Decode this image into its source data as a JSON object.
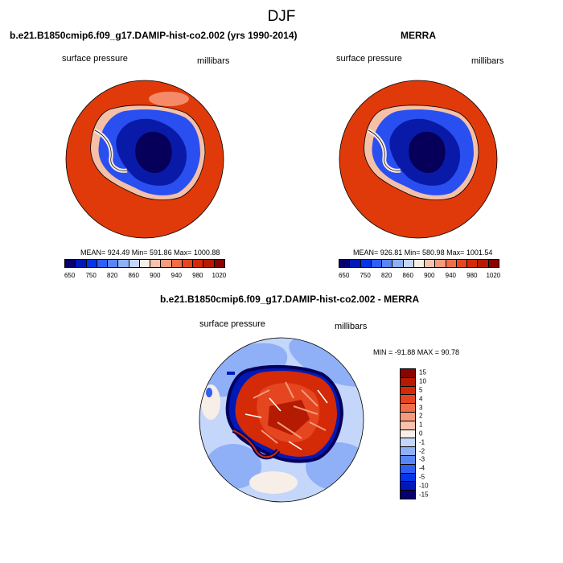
{
  "title": "DJF",
  "panels": [
    {
      "title": "b.e21.B1850cmip6.f09_g17.DAMIP-hist-co2.002 (yrs 1990-2014)",
      "left_label": "surface pressure",
      "right_label": "millibars",
      "stats": "MEAN= 924.49  Min= 591.86  Max= 1000.88"
    },
    {
      "title": "MERRA",
      "left_label": "surface pressure",
      "right_label": "millibars",
      "stats": "MEAN= 926.81  Min= 580.98  Max= 1001.54"
    },
    {
      "title": "b.e21.B1850cmip6.f09_g17.DAMIP-hist-co2.002 - MERRA",
      "left_label": "surface pressure",
      "right_label": "millibars",
      "stats": "MIN = -91.88  MAX =  90.78"
    }
  ],
  "colorbar_top": {
    "labels": [
      "650",
      "750",
      "820",
      "860",
      "900",
      "940",
      "980",
      "1020"
    ],
    "colors": [
      "#08006e",
      "#0019b6",
      "#0535e6",
      "#2f5ff0",
      "#5a86f5",
      "#8fb0f7",
      "#c4d6fa",
      "#f8eee8",
      "#f8c2ac",
      "#f49b7e",
      "#ee6e4a",
      "#e5461f",
      "#d42a08",
      "#b51a02",
      "#890400"
    ]
  },
  "colorbar_diff": {
    "labels": [
      "15",
      "10",
      "5",
      "4",
      "3",
      "2",
      "1",
      "0",
      "-1",
      "-2",
      "-3",
      "-4",
      "-5",
      "-10",
      "-15"
    ],
    "colors": [
      "#890400",
      "#b51a02",
      "#d42a08",
      "#e5461f",
      "#ee6e4a",
      "#f49b7e",
      "#f8c2ac",
      "#f8eee8",
      "#c4d6fa",
      "#8fb0f7",
      "#5a86f5",
      "#2f5ff0",
      "#0535e6",
      "#0019b6",
      "#08006e"
    ]
  },
  "chart_data": [
    {
      "type": "heatmap",
      "title": "b.e21.B1850cmip6.f09_g17.DAMIP-hist-co2.002 (yrs 1990-2014)",
      "variable": "surface pressure",
      "units": "millibars",
      "projection": "south polar stereographic",
      "mean": 924.49,
      "min": 591.86,
      "max": 1000.88,
      "contour_levels": [
        650,
        700,
        750,
        800,
        820,
        840,
        860,
        880,
        900,
        920,
        940,
        960,
        980,
        1000,
        1020
      ]
    },
    {
      "type": "heatmap",
      "title": "MERRA",
      "variable": "surface pressure",
      "units": "millibars",
      "projection": "south polar stereographic",
      "mean": 926.81,
      "min": 580.98,
      "max": 1001.54,
      "contour_levels": [
        650,
        700,
        750,
        800,
        820,
        840,
        860,
        880,
        900,
        920,
        940,
        960,
        980,
        1000,
        1020
      ]
    },
    {
      "type": "heatmap",
      "title": "b.e21.B1850cmip6.f09_g17.DAMIP-hist-co2.002 - MERRA",
      "variable": "surface pressure",
      "units": "millibars",
      "projection": "south polar stereographic",
      "min": -91.88,
      "max": 90.78,
      "contour_levels": [
        -15,
        -10,
        -5,
        -4,
        -3,
        -2,
        -1,
        0,
        1,
        2,
        3,
        4,
        5,
        10,
        15
      ]
    }
  ]
}
